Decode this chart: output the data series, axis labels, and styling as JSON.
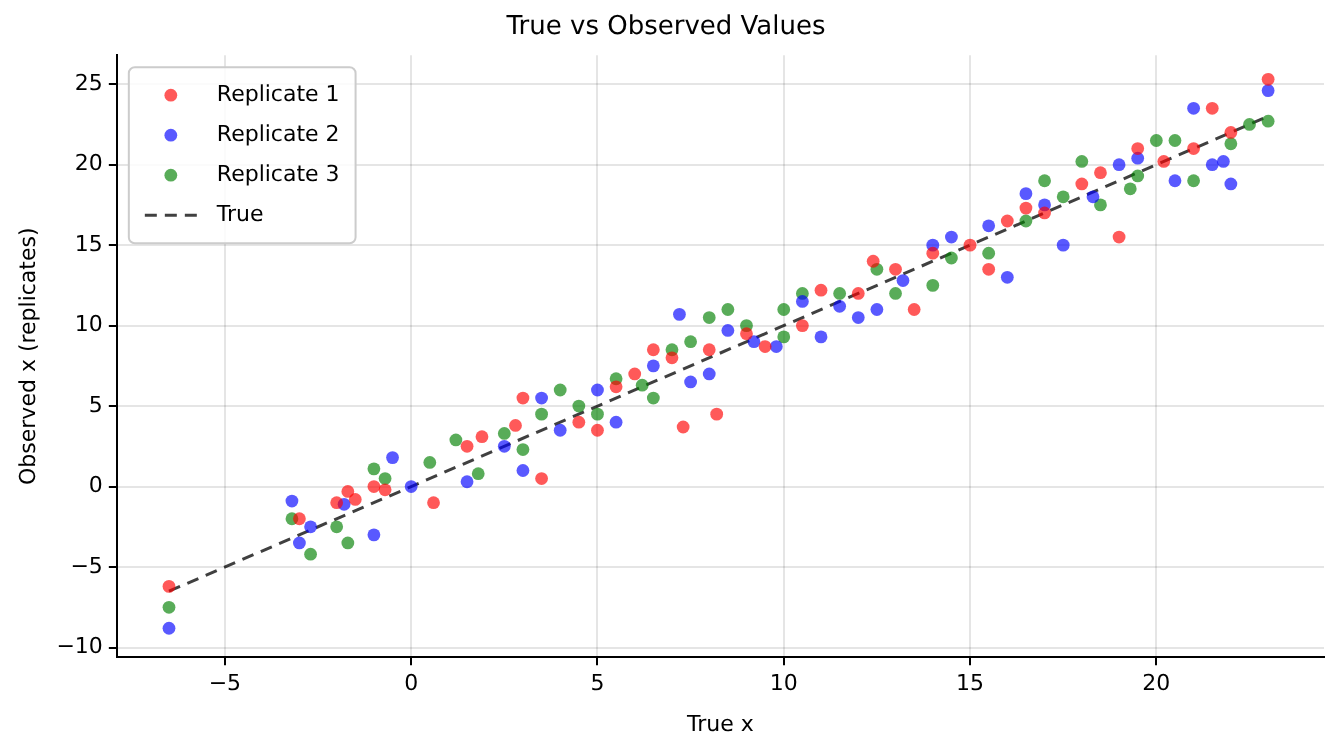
{
  "chart_data": {
    "type": "scatter",
    "title": "True vs Observed Values",
    "xlabel": "True x",
    "ylabel": "Observed x (replicates)",
    "xlim": [
      -7.9,
      24.5
    ],
    "ylim": [
      -10.6,
      26.8
    ],
    "xticks": [
      {
        "value": -5,
        "label": "−5"
      },
      0,
      5,
      10,
      15,
      20
    ],
    "yticks": [
      {
        "value": -10,
        "label": "−10"
      },
      {
        "value": -5,
        "label": "−5"
      },
      0,
      5,
      10,
      15,
      20,
      25
    ],
    "grid": true,
    "legend": "top left",
    "marker": "circle",
    "series": [
      {
        "name": "Replicate 1",
        "color": "#ff0000",
        "x": [
          -6.5,
          -3,
          -2,
          -1.7,
          -0.7,
          -1,
          0.6,
          1.5,
          1.9,
          2.8,
          3.5,
          4.5,
          5.5,
          6,
          7,
          7.3,
          8,
          8.2,
          9,
          10.5,
          11,
          12,
          12.4,
          13,
          14,
          15,
          16,
          16.5,
          17,
          18,
          18.5,
          19,
          19.5,
          20.2,
          21,
          21.5,
          22,
          23,
          -1.5,
          3,
          5,
          9.5,
          13.5,
          15.5,
          6.5
        ],
        "values": [
          -6.2,
          -2,
          -1,
          -0.3,
          -0.2,
          0,
          -1,
          2.5,
          3.1,
          3.8,
          0.5,
          4,
          6.2,
          7,
          8,
          3.7,
          8.5,
          4.5,
          9.5,
          10,
          12.2,
          12,
          14,
          13.5,
          14.5,
          15,
          16.5,
          17.3,
          17,
          18.8,
          19.5,
          15.5,
          21,
          20.2,
          21,
          23.5,
          22,
          25.3,
          -0.8,
          5.5,
          3.5,
          8.7,
          11,
          13.5,
          8.5
        ]
      },
      {
        "name": "Replicate 2",
        "color": "#0000ff",
        "x": [
          -6.5,
          -3.2,
          -3,
          -2.7,
          -1.8,
          -1,
          -0.5,
          0,
          1.5,
          2.5,
          3.5,
          4,
          5,
          5.5,
          6.5,
          7.2,
          8,
          9.2,
          9.8,
          10.5,
          11,
          11.5,
          12.5,
          13.2,
          14,
          14.5,
          15.5,
          16,
          17,
          17.5,
          18.3,
          19,
          19.5,
          20.5,
          21,
          21.5,
          21.8,
          22,
          23,
          3,
          7.5,
          12,
          16.5,
          8.5
        ],
        "values": [
          -8.8,
          -0.9,
          -3.5,
          -2.5,
          -1.1,
          -3,
          1.8,
          0,
          0.3,
          2.5,
          5.5,
          3.5,
          6,
          4,
          7.5,
          10.7,
          7,
          9,
          8.7,
          11.5,
          9.3,
          11.2,
          11,
          12.8,
          15,
          15.5,
          16.2,
          13,
          17.5,
          15,
          18,
          20,
          20.4,
          19,
          23.5,
          20,
          20.2,
          18.8,
          24.6,
          1,
          6.5,
          10.5,
          18.2,
          9.7
        ]
      },
      {
        "name": "Replicate 3",
        "color": "#008000",
        "x": [
          -6.5,
          -3.2,
          -2.7,
          -2,
          -1.7,
          -1,
          -0.7,
          0.5,
          1.2,
          1.8,
          2.5,
          3,
          3.5,
          4,
          4.5,
          5,
          5.5,
          6.2,
          7,
          7.5,
          8,
          8.5,
          9,
          10,
          10.5,
          11.5,
          12.5,
          13,
          14,
          14.5,
          15.5,
          16.5,
          17,
          17.5,
          18,
          18.5,
          19.3,
          19.5,
          20,
          20.5,
          21,
          22,
          22.5,
          23,
          10,
          6.5
        ],
        "values": [
          -7.5,
          -2,
          -4.2,
          -2.5,
          -3.5,
          1.1,
          0.5,
          1.5,
          2.9,
          0.8,
          3.3,
          2.3,
          4.5,
          6,
          5,
          4.5,
          6.7,
          6.3,
          8.5,
          9,
          10.5,
          11,
          10,
          9.3,
          12,
          12,
          13.5,
          12,
          12.5,
          14.2,
          14.5,
          16.5,
          19,
          18,
          20.2,
          17.5,
          18.5,
          19.3,
          21.5,
          21.5,
          19,
          21.3,
          22.5,
          22.7,
          11,
          5.5
        ]
      },
      {
        "name": "True",
        "type": "line",
        "line_style": "dashed",
        "marker": "none",
        "color": "#000000",
        "x": [
          -6.5,
          23
        ],
        "values": [
          -6.5,
          23
        ]
      }
    ]
  }
}
